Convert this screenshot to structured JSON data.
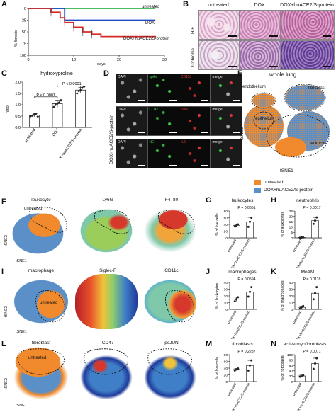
{
  "panels": {
    "A": {
      "letter": "A",
      "ylabel": "% fibrosis",
      "xlabel": "days",
      "yticks": [
        "0",
        "25",
        "50",
        "75",
        "100"
      ],
      "xticks": [
        "0",
        "10",
        "20",
        "30"
      ],
      "legend": [
        "untreated",
        "DOX",
        "DOX+huACE2/S-protein"
      ],
      "colors": {
        "untreated": "#2fb24a",
        "dox": "#1f49c4",
        "combo": "#d62a27"
      }
    },
    "B": {
      "letter": "B",
      "headers": [
        "untreated",
        "DOX",
        "DOX+huACE2/S-protein"
      ],
      "row_labels": [
        "H-E",
        "Trichrome"
      ]
    },
    "C": {
      "letter": "C",
      "title": "hydroxyproline",
      "ylabel": "ratio",
      "yticks": [
        "0.0",
        "0.5",
        "1.0",
        "1.5",
        "2.0"
      ],
      "categories": [
        "untreated",
        "DOX",
        "DOX+huACE2/S-protein"
      ],
      "p1": "P < 0.0001",
      "p2": "P < 0.0001"
    },
    "D": {
      "letter": "D",
      "row_label": "DOX+huACE2/S-protein",
      "rows": [
        [
          "DAPI",
          "spike",
          "CD11b",
          "merge"
        ],
        [
          "DAPI",
          "CD47",
          "JUN",
          "merge"
        ],
        [
          "DAPI",
          "NE",
          "IL6",
          "merge"
        ]
      ]
    },
    "E": {
      "letter": "E",
      "title": "whole lung",
      "ylabel": "tSNE2",
      "xlabel": "tSNE1",
      "labels": [
        "endothelium",
        "fibroblast",
        "epithelium",
        "leukocyte"
      ],
      "legend": [
        "untreated",
        "DOX+huACE2/S-protein"
      ],
      "colors": {
        "untreated": "#f08a2c",
        "combo": "#5b8fc8"
      }
    },
    "F": {
      "letter": "F",
      "titles": [
        "leukocyte",
        "Ly6G",
        "F4_80"
      ],
      "overlay": "untreated",
      "ylabel": "tSNE2",
      "xlabel": "tSNE1"
    },
    "G": {
      "letter": "G",
      "title": "leukocytes",
      "p": "P = 0.0651",
      "ylabel": "% of live cells",
      "yticks": [
        "0",
        "20",
        "40",
        "60",
        "80"
      ],
      "categories": [
        "untreated",
        "DOX+huACE2/S-protein"
      ]
    },
    "H": {
      "letter": "H",
      "title": "neutrophils",
      "p": "P = 0.0017",
      "ylabel": "% of leukocytes",
      "yticks": [
        "0",
        "5",
        "10",
        "15",
        "20",
        "25"
      ],
      "categories": [
        "untreated",
        "DOX+huACE2/S-protein"
      ]
    },
    "I": {
      "letter": "I",
      "titles": [
        "macrophage",
        "Siglec-F",
        "CD11c"
      ],
      "overlay": "untreated",
      "ylabel": "tSNE2",
      "xlabel": "tSNE1"
    },
    "J": {
      "letter": "J",
      "title": "macrophages",
      "p": "P = 0.0594",
      "ylabel": "% of leukocytes",
      "yticks": [
        "0",
        "10",
        "20",
        "30",
        "40"
      ],
      "categories": [
        "untreated",
        "DOX+huACE2/S-protein"
      ]
    },
    "K": {
      "letter": "K",
      "title": "MoAM",
      "p": "P = 0.0118",
      "ylabel": "% of macrophages",
      "yticks": [
        "0",
        "10",
        "20",
        "30",
        "40"
      ],
      "categories": [
        "untreated",
        "DOX+huACE2/S-protein"
      ]
    },
    "L": {
      "letter": "L",
      "titles": [
        "fibroblast",
        "CD47",
        "pcJUN"
      ],
      "overlay": "untreated",
      "ylabel": "tSNE2",
      "xlabel": "tSNE1"
    },
    "M": {
      "letter": "M",
      "title": "fibroblasts",
      "p": "P = 0.2287",
      "ylabel": "% of live cells",
      "yticks": [
        "0",
        "20",
        "40",
        "60",
        "80"
      ],
      "categories": [
        "untreated",
        "DOX+huACE2/S-protein"
      ]
    },
    "N": {
      "letter": "N",
      "title": "active myofibroblasts",
      "p": "P = 0.0071",
      "ylabel": "% of fibroblasts",
      "yticks": [
        "0",
        "20",
        "40",
        "60",
        "80",
        "100"
      ],
      "categories": [
        "untreated",
        "DOX+huACE2/S-protein"
      ]
    }
  },
  "chart_data": [
    {
      "type": "line",
      "panel": "A",
      "xlabel": "days",
      "ylabel": "% fibrosis",
      "ylim": [
        100,
        0
      ],
      "xlim": [
        0,
        30
      ],
      "series": [
        {
          "name": "untreated",
          "x": [
            0,
            28
          ],
          "values": [
            0,
            0
          ]
        },
        {
          "name": "DOX",
          "x": [
            0,
            6,
            8,
            28
          ],
          "values": [
            0,
            0,
            25,
            25
          ]
        },
        {
          "name": "DOX+huACE2/S-protein",
          "x": [
            0,
            5,
            7,
            8,
            10,
            12,
            14,
            16,
            28
          ],
          "values": [
            0,
            8,
            20,
            30,
            40,
            50,
            55,
            60,
            62
          ]
        }
      ]
    },
    {
      "type": "bar",
      "panel": "C",
      "title": "hydroxyproline",
      "ylabel": "ratio",
      "ylim": [
        0,
        2.0
      ],
      "categories": [
        "untreated",
        "DOX",
        "DOX+huACE2/S-protein"
      ],
      "values": [
        0.55,
        1.05,
        1.65
      ],
      "errors": [
        0.08,
        0.15,
        0.12
      ],
      "points": [
        [
          0.5,
          0.52,
          0.58,
          0.6,
          0.48
        ],
        [
          0.9,
          1.0,
          1.05,
          1.1,
          1.2
        ],
        [
          1.5,
          1.6,
          1.65,
          1.75,
          1.8
        ]
      ]
    },
    {
      "type": "bar",
      "panel": "G",
      "title": "leukocytes",
      "ylabel": "% of live cells",
      "ylim": [
        0,
        80
      ],
      "categories": [
        "untreated",
        "DOX+huACE2/S-protein"
      ],
      "values": [
        37,
        47
      ],
      "errors": [
        3,
        14
      ],
      "points": [
        [
          34,
          36,
          40
        ],
        [
          33,
          48,
          60
        ]
      ]
    },
    {
      "type": "bar",
      "panel": "H",
      "title": "neutrophils",
      "ylabel": "% of leukocytes",
      "ylim": [
        0,
        25
      ],
      "categories": [
        "untreated",
        "DOX+huACE2/S-protein"
      ],
      "values": [
        0.3,
        16
      ],
      "errors": [
        0.2,
        3
      ],
      "points": [
        [
          0.2,
          0.3,
          0.4
        ],
        [
          13,
          16,
          19
        ]
      ]
    },
    {
      "type": "bar",
      "panel": "J",
      "title": "macrophages",
      "ylabel": "% of leukocytes",
      "ylim": [
        0,
        40
      ],
      "categories": [
        "untreated",
        "DOX+huACE2/S-protein"
      ],
      "values": [
        15,
        26
      ],
      "errors": [
        3,
        7
      ],
      "points": [
        [
          12,
          15,
          18
        ],
        [
          19,
          26,
          33
        ]
      ]
    },
    {
      "type": "bar",
      "panel": "K",
      "title": "MoAM",
      "ylabel": "% of macrophages",
      "ylim": [
        0,
        40
      ],
      "categories": [
        "untreated",
        "DOX+huACE2/S-protein"
      ],
      "values": [
        3,
        24
      ],
      "errors": [
        2,
        9
      ],
      "points": [
        [
          1,
          3,
          5
        ],
        [
          15,
          24,
          33
        ]
      ]
    },
    {
      "type": "bar",
      "panel": "M",
      "title": "fibroblasts",
      "ylabel": "% of live cells",
      "ylim": [
        0,
        80
      ],
      "categories": [
        "untreated",
        "DOX+huACE2/S-protein"
      ],
      "values": [
        36,
        48
      ],
      "errors": [
        3,
        15
      ],
      "points": [
        [
          33,
          36,
          39
        ],
        [
          33,
          48,
          63
        ]
      ]
    },
    {
      "type": "bar",
      "panel": "N",
      "title": "active myofibroblasts",
      "ylabel": "% of fibroblasts",
      "ylim": [
        0,
        100
      ],
      "categories": [
        "untreated",
        "DOX+huACE2/S-protein"
      ],
      "values": [
        21,
        67
      ],
      "errors": [
        3,
        20
      ],
      "points": [
        [
          18,
          21,
          24
        ],
        [
          47,
          67,
          87
        ]
      ]
    }
  ]
}
